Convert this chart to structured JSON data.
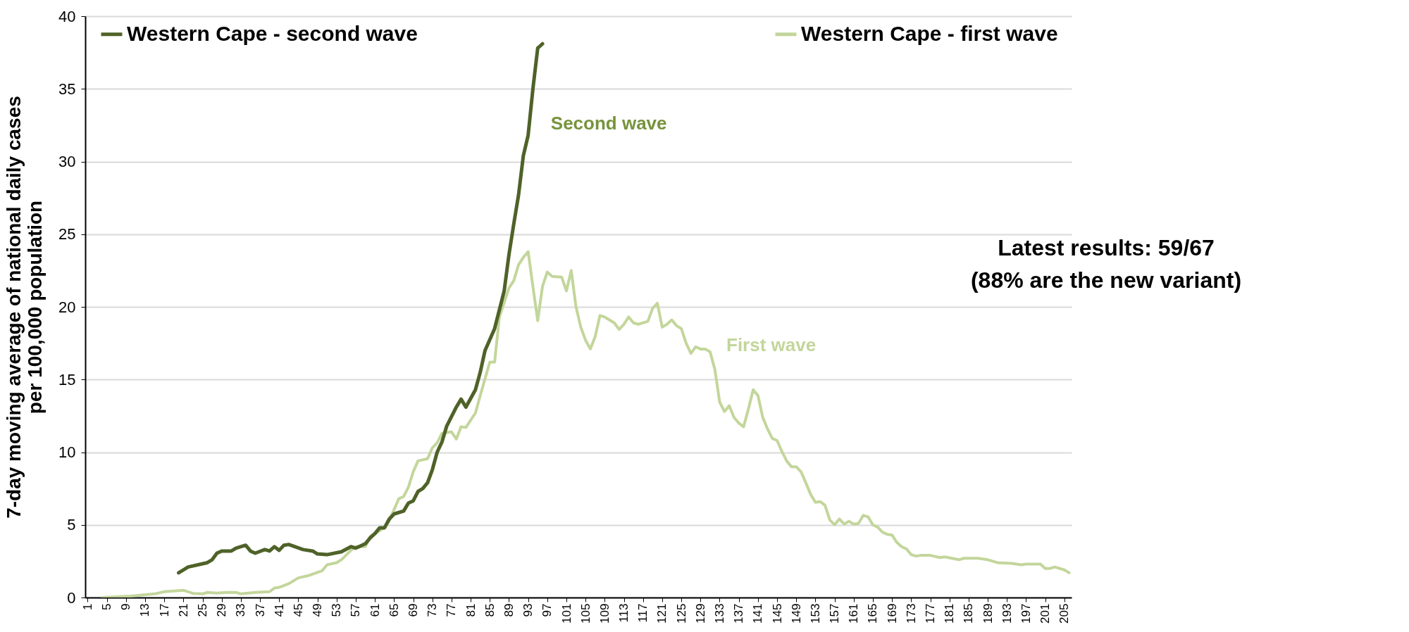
{
  "chart_data": {
    "type": "line",
    "ylabel": "7-day moving  average of national daily cases\nper 100,000 population",
    "xlim": [
      0.5,
      206.5
    ],
    "xticks": [
      1,
      5,
      9,
      13,
      17,
      21,
      25,
      29,
      33,
      37,
      41,
      45,
      49,
      53,
      57,
      61,
      65,
      69,
      73,
      77,
      81,
      85,
      89,
      93,
      97,
      101,
      105,
      109,
      113,
      117,
      121,
      125,
      129,
      133,
      137,
      141,
      145,
      149,
      153,
      157,
      161,
      165,
      169,
      173,
      177,
      181,
      185,
      189,
      193,
      197,
      201,
      205
    ],
    "ylim": [
      0,
      40
    ],
    "yticks": [
      0,
      5,
      10,
      15,
      20,
      25,
      30,
      35,
      40
    ],
    "grid": "y",
    "legend": "top",
    "marker": "none",
    "series": [
      {
        "name": "Western Cape - second wave",
        "color": "#4f6228",
        "x": [
          20,
          22,
          26,
          27,
          28,
          29,
          31,
          32,
          34,
          35,
          36,
          38,
          39,
          40,
          41,
          42,
          43,
          46,
          48,
          49,
          51,
          54,
          56,
          57,
          59,
          60,
          61,
          62,
          63,
          64,
          65,
          67,
          68,
          69,
          70,
          71,
          72,
          73,
          74,
          75,
          76,
          78,
          79,
          80,
          82,
          83,
          84,
          86,
          88,
          89,
          90,
          91,
          92,
          93,
          94,
          95,
          96
        ],
        "values": [
          1.7,
          2.1,
          2.4,
          2.6,
          3.05,
          3.2,
          3.2,
          3.4,
          3.6,
          3.2,
          3.05,
          3.3,
          3.2,
          3.5,
          3.25,
          3.6,
          3.65,
          3.3,
          3.2,
          3.0,
          2.95,
          3.15,
          3.5,
          3.4,
          3.7,
          4.1,
          4.4,
          4.8,
          4.8,
          5.4,
          5.75,
          5.95,
          6.5,
          6.65,
          7.3,
          7.5,
          7.9,
          8.8,
          10.0,
          10.7,
          11.8,
          13.1,
          13.65,
          13.1,
          14.3,
          15.5,
          17.0,
          18.5,
          21.1,
          23.6,
          25.7,
          27.7,
          30.4,
          31.8,
          35.0,
          37.8,
          38.1
        ]
      },
      {
        "name": "Western Cape - first wave",
        "color": "#c3d69b",
        "x": [
          4,
          10,
          15,
          17,
          21,
          23,
          25,
          26,
          28,
          30,
          32,
          33,
          36,
          39,
          40,
          41,
          43,
          45,
          47,
          50,
          51,
          53,
          54,
          56,
          57,
          59,
          60,
          63,
          64,
          66,
          67,
          68,
          69,
          70,
          72,
          73,
          74,
          75,
          77,
          78,
          79,
          80,
          82,
          83,
          85,
          86,
          87,
          89,
          90,
          91,
          92,
          93,
          94,
          95,
          96,
          97,
          98,
          100,
          101,
          102,
          103,
          104,
          105,
          106,
          107,
          108,
          109,
          111,
          112,
          113,
          114,
          115,
          116,
          118,
          119,
          120,
          121,
          122,
          123,
          124,
          125,
          126,
          127,
          128,
          129,
          130,
          131,
          132,
          133,
          134,
          135,
          136,
          137,
          138,
          139,
          140,
          141,
          142,
          143,
          144,
          145,
          146,
          147,
          148,
          149,
          150,
          151,
          152,
          153,
          154,
          155,
          156,
          157,
          158,
          159,
          160,
          161,
          162,
          163,
          164,
          165,
          166,
          167,
          168,
          169,
          170,
          171,
          172,
          173,
          174,
          175,
          177,
          179,
          180,
          183,
          184,
          186,
          187,
          189,
          191,
          194,
          196,
          197,
          200,
          201,
          202,
          203,
          205,
          206
        ],
        "values": [
          0,
          0.1,
          0.25,
          0.4,
          0.5,
          0.28,
          0.25,
          0.35,
          0.3,
          0.35,
          0.35,
          0.25,
          0.35,
          0.4,
          0.65,
          0.7,
          0.95,
          1.35,
          1.5,
          1.85,
          2.25,
          2.4,
          2.6,
          3.25,
          3.5,
          3.5,
          4.2,
          4.8,
          5.3,
          6.8,
          6.95,
          7.6,
          8.65,
          9.4,
          9.55,
          10.3,
          10.65,
          11.3,
          11.4,
          10.9,
          11.75,
          11.7,
          12.7,
          13.9,
          16.2,
          16.2,
          19.3,
          21.3,
          21.8,
          22.9,
          23.4,
          23.8,
          21.4,
          19.05,
          21.4,
          22.4,
          22.1,
          22.05,
          21.1,
          22.5,
          20.0,
          18.6,
          17.7,
          17.1,
          17.95,
          19.4,
          19.3,
          18.9,
          18.45,
          18.8,
          19.3,
          18.9,
          18.8,
          19.0,
          19.9,
          20.25,
          18.6,
          18.8,
          19.1,
          18.7,
          18.5,
          17.5,
          16.8,
          17.25,
          17.1,
          17.1,
          16.9,
          15.7,
          13.45,
          12.8,
          13.2,
          12.4,
          12.0,
          11.75,
          12.95,
          14.3,
          13.9,
          12.4,
          11.6,
          10.95,
          10.8,
          10.05,
          9.4,
          9.0,
          9.0,
          8.65,
          7.9,
          7.1,
          6.55,
          6.6,
          6.35,
          5.35,
          5.0,
          5.4,
          5.05,
          5.25,
          5.05,
          5.1,
          5.65,
          5.55,
          5.0,
          4.85,
          4.5,
          4.35,
          4.3,
          3.8,
          3.5,
          3.35,
          2.95,
          2.85,
          2.9,
          2.9,
          2.75,
          2.8,
          2.6,
          2.7,
          2.7,
          2.7,
          2.6,
          2.4,
          2.35,
          2.25,
          2.3,
          2.3,
          2.0,
          2.0,
          2.1,
          1.9,
          1.7
        ]
      }
    ],
    "annotations": [
      "Second wave",
      "First wave",
      "Latest results: 59/67\n(88% are the new variant)"
    ]
  }
}
